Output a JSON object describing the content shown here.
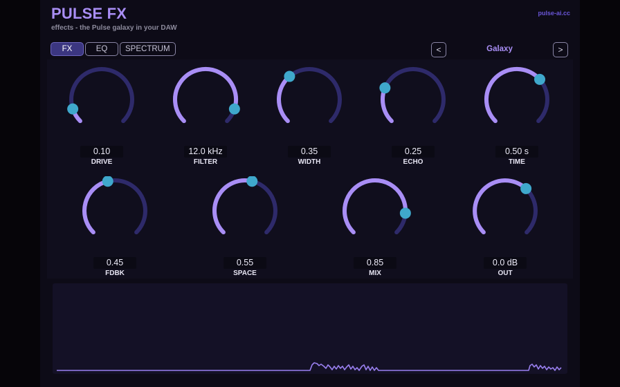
{
  "header": {
    "title": "PULSE FX",
    "subtitle": "effects - the Pulse galaxy in your DAW",
    "site": "pulse-ai.cc"
  },
  "tabs": [
    {
      "label": "FX",
      "active": true
    },
    {
      "label": "EQ",
      "active": false
    },
    {
      "label": "SPECTRUM",
      "active": false
    }
  ],
  "preset": {
    "prev": "<",
    "name": "Galaxy",
    "next": ">"
  },
  "colors": {
    "accent": "#a98ef5",
    "track": "#2e2a6a",
    "handle": "#3fa8cc"
  },
  "knobs": [
    {
      "label": "DRIVE",
      "value": "0.10",
      "level": 0.1
    },
    {
      "label": "FILTER",
      "value": "12.0 kHz",
      "level": 0.9
    },
    {
      "label": "WIDTH",
      "value": "0.35",
      "level": 0.35
    },
    {
      "label": "ECHO",
      "value": "0.25",
      "level": 0.25
    },
    {
      "label": "TIME",
      "value": "0.50 s",
      "level": 0.68
    },
    {
      "label": "FDBK",
      "value": "0.45",
      "level": 0.45
    },
    {
      "label": "SPACE",
      "value": "0.55",
      "level": 0.55
    },
    {
      "label": "MIX",
      "value": "0.85",
      "level": 0.85
    },
    {
      "label": "OUT",
      "value": "0.0 dB",
      "level": 0.66
    }
  ]
}
